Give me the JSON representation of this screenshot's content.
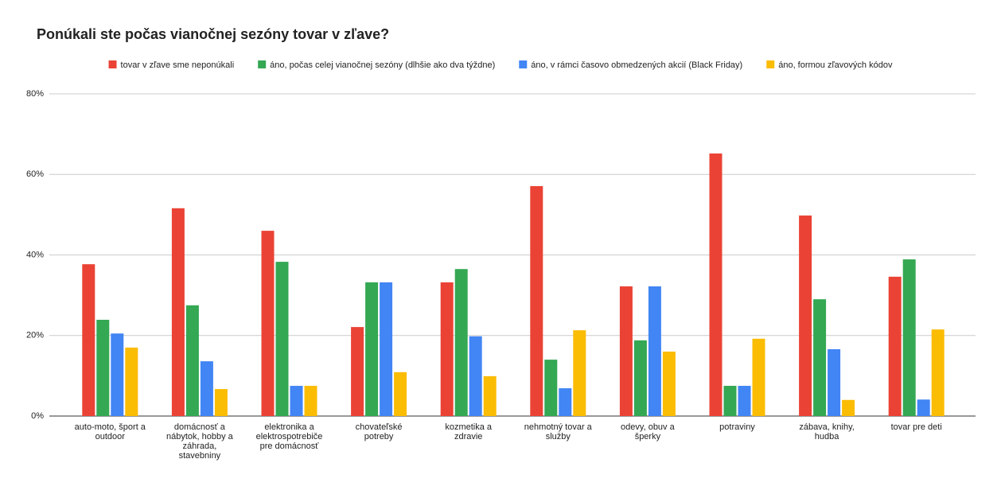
{
  "chart_data": {
    "type": "bar",
    "title": "Ponúkali ste počas vianočnej sezóny tovar v zľave?",
    "categories": [
      "auto-moto, šport a outdoor",
      "domácnosť a nábytok, hobby a záhrada, stavebniny",
      "elektronika a elektrospotrebiče pre domácnosť",
      "chovateľské potreby",
      "kozmetika a zdravie",
      "nehmotný tovar a služby",
      "odevy, obuv a šperky",
      "potraviny",
      "zábava, knihy, hudba",
      "tovar pre deti"
    ],
    "series": [
      {
        "name": "tovar v zľave sme neponúkali",
        "color": "#ea4335",
        "values": [
          37.7,
          51.6,
          46.0,
          22.1,
          33.2,
          57.1,
          32.2,
          65.2,
          49.8,
          34.6
        ]
      },
      {
        "name": "áno, počas celej vianočnej sezóny (dlhšie ako dva týždne)",
        "color": "#34a853",
        "values": [
          23.9,
          27.5,
          38.3,
          33.2,
          36.5,
          14.0,
          18.8,
          7.5,
          29.0,
          38.9
        ]
      },
      {
        "name": "áno, v rámci časovo obmedzených akcií (Black Friday)",
        "color": "#4285f4",
        "values": [
          20.5,
          13.6,
          7.5,
          33.2,
          19.8,
          6.9,
          32.2,
          7.5,
          16.6,
          4.1
        ]
      },
      {
        "name": "áno, formou zľavových kódov",
        "color": "#fbbc04",
        "values": [
          17.0,
          6.7,
          7.5,
          10.9,
          9.9,
          21.3,
          16.0,
          19.2,
          4.0,
          21.5
        ]
      }
    ],
    "ylim": [
      0,
      80
    ],
    "yticks": [
      {
        "value": 0,
        "label": "0%"
      },
      {
        "value": 20,
        "label": "20%"
      },
      {
        "value": 40,
        "label": "40%"
      },
      {
        "value": 60,
        "label": "60%"
      },
      {
        "value": 80,
        "label": "80%"
      }
    ],
    "grid": true,
    "legend": "top"
  }
}
